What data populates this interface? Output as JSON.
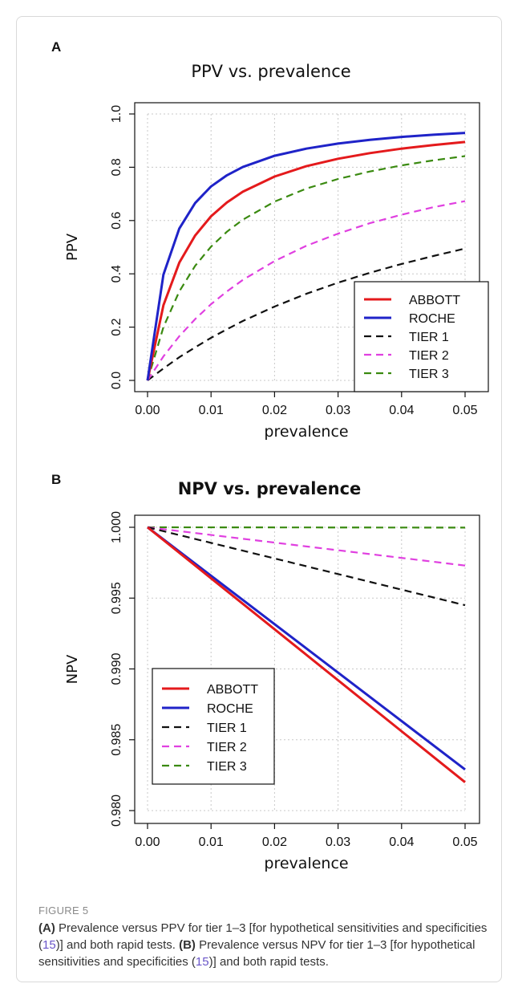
{
  "chart_data": [
    {
      "panel": "A",
      "type": "line",
      "title": "PPV vs. prevalence",
      "xlabel": "prevalence",
      "ylabel": "PPV",
      "xlim": [
        0,
        0.05
      ],
      "ylim": [
        0,
        1
      ],
      "xticks": [
        "0.00",
        "0.01",
        "0.02",
        "0.03",
        "0.04",
        "0.05"
      ],
      "yticks": [
        "0.0",
        "0.2",
        "0.4",
        "0.6",
        "0.8",
        "1.0"
      ],
      "grid": true,
      "legend_position": "bottom-right",
      "x": [
        0,
        0.0025,
        0.005,
        0.0075,
        0.01,
        0.0125,
        0.015,
        0.02,
        0.025,
        0.03,
        0.035,
        0.04,
        0.045,
        0.05
      ],
      "series": [
        {
          "name": "ABBOTT",
          "color": "#e41a1c",
          "dash": "solid",
          "values": [
            0,
            0.282,
            0.442,
            0.544,
            0.616,
            0.668,
            0.708,
            0.765,
            0.804,
            0.832,
            0.853,
            0.87,
            0.883,
            0.895
          ]
        },
        {
          "name": "ROCHE",
          "color": "#1f23c8",
          "dash": "solid",
          "values": [
            0,
            0.397,
            0.57,
            0.666,
            0.728,
            0.77,
            0.801,
            0.843,
            0.87,
            0.889,
            0.903,
            0.914,
            0.922,
            0.929
          ]
        },
        {
          "name": "TIER 1",
          "color": "#111111",
          "dash": "dashed",
          "values": [
            0,
            0.045,
            0.087,
            0.124,
            0.16,
            0.192,
            0.223,
            0.277,
            0.325,
            0.367,
            0.404,
            0.437,
            0.467,
            0.495
          ]
        },
        {
          "name": "TIER 2",
          "color": "#e040e0",
          "dash": "dashed",
          "values": [
            0,
            0.09,
            0.166,
            0.23,
            0.286,
            0.334,
            0.377,
            0.448,
            0.505,
            0.551,
            0.59,
            0.622,
            0.65,
            0.673
          ]
        },
        {
          "name": "TIER 3",
          "color": "#3a8a10",
          "dash": "dashed",
          "values": [
            0,
            0.2,
            0.334,
            0.43,
            0.502,
            0.558,
            0.603,
            0.671,
            0.72,
            0.756,
            0.784,
            0.807,
            0.826,
            0.842
          ]
        }
      ]
    },
    {
      "panel": "B",
      "type": "line",
      "title": "NPV vs. prevalence",
      "xlabel": "prevalence",
      "ylabel": "NPV",
      "xlim": [
        0,
        0.05
      ],
      "ylim": [
        0.98,
        1.0
      ],
      "xticks": [
        "0.00",
        "0.01",
        "0.02",
        "0.03",
        "0.04",
        "0.05"
      ],
      "yticks": [
        "0.980",
        "0.985",
        "0.990",
        "0.995",
        "1.000"
      ],
      "grid": true,
      "legend_position": "center-left",
      "x": [
        0,
        0.05
      ],
      "series": [
        {
          "name": "ABBOTT",
          "color": "#e41a1c",
          "dash": "solid",
          "values": [
            1.0,
            0.982
          ]
        },
        {
          "name": "ROCHE",
          "color": "#1f23c8",
          "dash": "solid",
          "values": [
            1.0,
            0.9829
          ]
        },
        {
          "name": "TIER 1",
          "color": "#111111",
          "dash": "dashed",
          "values": [
            1.0,
            0.9945
          ]
        },
        {
          "name": "TIER 2",
          "color": "#e040e0",
          "dash": "dashed",
          "values": [
            1.0,
            0.9973
          ]
        },
        {
          "name": "TIER 3",
          "color": "#3a8a10",
          "dash": "dashed",
          "values": [
            1.0,
            0.99998
          ]
        }
      ]
    }
  ],
  "figure": {
    "label": "FIGURE 5",
    "caption_a_tag": "(A)",
    "caption_a_text": " Prevalence versus PPV for tier 1–3 [for hypothetical sensitivities and specificities (",
    "caption_a_ref": "15",
    "caption_a_end": ")] and both rapid tests. ",
    "caption_b_tag": "(B)",
    "caption_b_text": " Prevalence versus NPV for tier 1–3 [for hypothetical sensitivities and specificities (",
    "caption_b_ref": "15",
    "caption_b_end": ")] and both rapid tests."
  }
}
